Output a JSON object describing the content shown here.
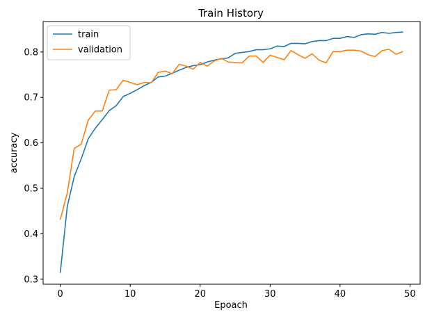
{
  "chart_data": {
    "type": "line",
    "title": "Train History",
    "xlabel": "Epoach",
    "ylabel": "accuracy",
    "xlim": [
      -2.45,
      51.45
    ],
    "ylim": [
      0.289,
      0.867
    ],
    "xticks": [
      0,
      10,
      20,
      30,
      40,
      50
    ],
    "yticks": [
      0.3,
      0.4,
      0.5,
      0.6,
      0.7,
      0.8
    ],
    "xtick_labels": [
      "0",
      "10",
      "20",
      "30",
      "40",
      "50"
    ],
    "ytick_labels": [
      "0.3",
      "0.4",
      "0.5",
      "0.6",
      "0.7",
      "0.8"
    ],
    "grid": false,
    "legend_position": "top-left",
    "x": [
      0,
      1,
      2,
      3,
      4,
      5,
      6,
      7,
      8,
      9,
      10,
      11,
      12,
      13,
      14,
      15,
      16,
      17,
      18,
      19,
      20,
      21,
      22,
      23,
      24,
      25,
      26,
      27,
      28,
      29,
      30,
      31,
      32,
      33,
      34,
      35,
      36,
      37,
      38,
      39,
      40,
      41,
      42,
      43,
      44,
      45,
      46,
      47,
      48,
      49
    ],
    "series": [
      {
        "name": "train",
        "color": "#1f77b4",
        "values": [
          0.314,
          0.46,
          0.526,
          0.565,
          0.609,
          0.632,
          0.651,
          0.671,
          0.682,
          0.702,
          0.709,
          0.717,
          0.726,
          0.733,
          0.745,
          0.747,
          0.753,
          0.76,
          0.766,
          0.77,
          0.772,
          0.778,
          0.782,
          0.785,
          0.787,
          0.797,
          0.799,
          0.801,
          0.805,
          0.805,
          0.807,
          0.813,
          0.812,
          0.819,
          0.819,
          0.818,
          0.823,
          0.825,
          0.825,
          0.83,
          0.83,
          0.834,
          0.832,
          0.838,
          0.84,
          0.839,
          0.843,
          0.841,
          0.843,
          0.844
        ]
      },
      {
        "name": "validation",
        "color": "#ff7f0e",
        "values": [
          0.431,
          0.49,
          0.588,
          0.597,
          0.65,
          0.67,
          0.67,
          0.716,
          0.717,
          0.738,
          0.733,
          0.728,
          0.733,
          0.732,
          0.755,
          0.758,
          0.752,
          0.773,
          0.769,
          0.762,
          0.777,
          0.769,
          0.78,
          0.786,
          0.778,
          0.777,
          0.776,
          0.791,
          0.791,
          0.777,
          0.793,
          0.788,
          0.783,
          0.803,
          0.794,
          0.786,
          0.796,
          0.782,
          0.776,
          0.801,
          0.801,
          0.804,
          0.804,
          0.802,
          0.794,
          0.79,
          0.803,
          0.806,
          0.795,
          0.801
        ]
      }
    ]
  }
}
